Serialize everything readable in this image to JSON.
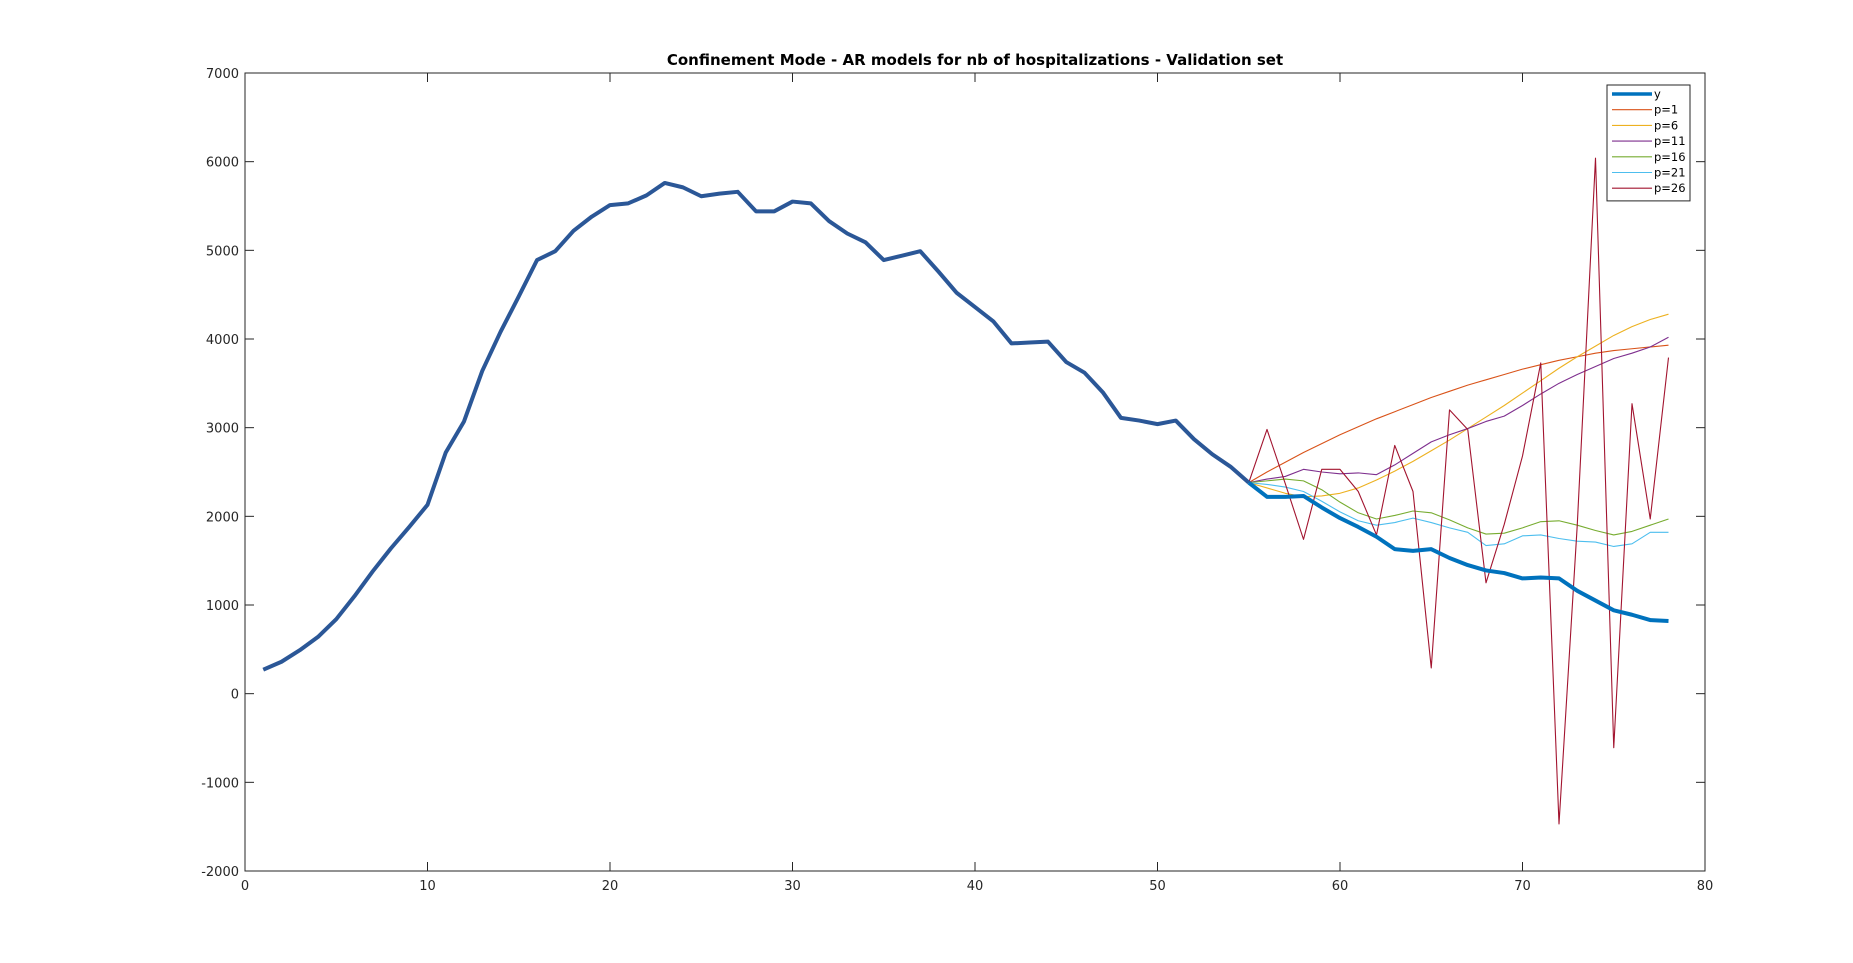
{
  "chart_data": {
    "type": "line",
    "title": "Confinement Mode - AR models for nb of hospitalizations - Validation set",
    "xlabel": "",
    "ylabel": "",
    "xlim": [
      0,
      80
    ],
    "ylim": [
      -2000,
      7000
    ],
    "xticks": [
      0,
      10,
      20,
      30,
      40,
      50,
      60,
      70,
      80
    ],
    "yticks": [
      -2000,
      -1000,
      0,
      1000,
      2000,
      3000,
      4000,
      5000,
      6000,
      7000
    ],
    "grid": false,
    "legend_position": "top-right",
    "history": {
      "color": "#2b5797",
      "x": [
        1,
        2,
        3,
        4,
        5,
        6,
        7,
        8,
        9,
        10,
        11,
        12,
        13,
        14,
        15,
        16,
        17,
        18,
        19,
        20,
        21,
        22,
        23,
        24,
        25,
        26,
        27,
        28,
        29,
        30,
        31,
        32,
        33,
        34,
        35,
        36,
        37,
        38,
        39,
        40,
        41,
        42,
        43,
        44,
        45,
        46,
        47,
        48,
        49,
        50,
        51,
        52,
        53,
        54,
        55
      ],
      "values": [
        270,
        360,
        490,
        640,
        840,
        1100,
        1380,
        1640,
        1880,
        2130,
        2720,
        3070,
        3640,
        4080,
        4480,
        4890,
        4990,
        5220,
        5380,
        5510,
        5530,
        5620,
        5760,
        5710,
        5610,
        5640,
        5660,
        5440,
        5440,
        5550,
        5530,
        5330,
        5190,
        5090,
        4890,
        4940,
        4990,
        4760,
        4520,
        4360,
        4200,
        3950,
        3960,
        3970,
        3740,
        3620,
        3400,
        3110,
        3080,
        3040,
        3080,
        2870,
        2700,
        2560,
        2380
      ]
    },
    "series": [
      {
        "name": "y",
        "color": "#0072bd",
        "width": 4,
        "x": [
          55,
          56,
          57,
          58,
          59,
          60,
          61,
          62,
          63,
          64,
          65,
          66,
          67,
          68,
          69,
          70,
          71,
          72,
          73,
          74,
          75,
          76,
          77,
          78
        ],
        "values": [
          2380,
          2220,
          2220,
          2230,
          2100,
          1980,
          1880,
          1770,
          1630,
          1610,
          1630,
          1530,
          1450,
          1390,
          1360,
          1300,
          1310,
          1300,
          1160,
          1050,
          940,
          890,
          830,
          820
        ]
      },
      {
        "name": "p=1",
        "color": "#d95319",
        "width": 1.1,
        "x": [
          55,
          56,
          57,
          58,
          59,
          60,
          61,
          62,
          63,
          64,
          65,
          66,
          67,
          68,
          69,
          70,
          71,
          72,
          73,
          74,
          75,
          76,
          77,
          78
        ],
        "values": [
          2380,
          2500,
          2610,
          2720,
          2820,
          2920,
          3010,
          3100,
          3180,
          3260,
          3340,
          3410,
          3480,
          3540,
          3600,
          3660,
          3710,
          3760,
          3800,
          3840,
          3870,
          3890,
          3910,
          3930
        ]
      },
      {
        "name": "p=6",
        "color": "#edb120",
        "width": 1.1,
        "x": [
          55,
          56,
          57,
          58,
          59,
          60,
          61,
          62,
          63,
          64,
          65,
          66,
          67,
          68,
          69,
          70,
          71,
          72,
          73,
          74,
          75,
          76,
          77,
          78
        ],
        "values": [
          2380,
          2320,
          2260,
          2220,
          2230,
          2260,
          2320,
          2410,
          2510,
          2620,
          2740,
          2860,
          2990,
          3120,
          3250,
          3390,
          3530,
          3670,
          3800,
          3920,
          4040,
          4140,
          4220,
          4280
        ]
      },
      {
        "name": "p=11",
        "color": "#7e2f8e",
        "width": 1.1,
        "x": [
          55,
          56,
          57,
          58,
          59,
          60,
          61,
          62,
          63,
          64,
          65,
          66,
          67,
          68,
          69,
          70,
          71,
          72,
          73,
          74,
          75,
          76,
          77,
          78
        ],
        "values": [
          2380,
          2420,
          2450,
          2530,
          2500,
          2480,
          2490,
          2470,
          2580,
          2710,
          2840,
          2920,
          2990,
          3070,
          3130,
          3250,
          3380,
          3500,
          3600,
          3690,
          3780,
          3840,
          3910,
          4020
        ]
      },
      {
        "name": "p=16",
        "color": "#77ac30",
        "width": 1.1,
        "x": [
          55,
          56,
          57,
          58,
          59,
          60,
          61,
          62,
          63,
          64,
          65,
          66,
          67,
          68,
          69,
          70,
          71,
          72,
          73,
          74,
          75,
          76,
          77,
          78
        ],
        "values": [
          2380,
          2400,
          2420,
          2400,
          2300,
          2160,
          2040,
          1970,
          2010,
          2060,
          2040,
          1960,
          1870,
          1800,
          1810,
          1870,
          1940,
          1950,
          1900,
          1840,
          1790,
          1830,
          1900,
          1970
        ]
      },
      {
        "name": "p=21",
        "color": "#4dbeee",
        "width": 1.1,
        "x": [
          55,
          56,
          57,
          58,
          59,
          60,
          61,
          62,
          63,
          64,
          65,
          66,
          67,
          68,
          69,
          70,
          71,
          72,
          73,
          74,
          75,
          76,
          77,
          78
        ],
        "values": [
          2380,
          2360,
          2330,
          2280,
          2170,
          2050,
          1950,
          1900,
          1930,
          1980,
          1930,
          1870,
          1820,
          1670,
          1690,
          1780,
          1790,
          1750,
          1720,
          1710,
          1660,
          1690,
          1820,
          1820
        ]
      },
      {
        "name": "p=26",
        "color": "#a2142f",
        "width": 1.1,
        "x": [
          55,
          56,
          57,
          58,
          59,
          60,
          61,
          62,
          63,
          64,
          65,
          66,
          67,
          68,
          69,
          70,
          71,
          72,
          73,
          74,
          75,
          76,
          77,
          78
        ],
        "values": [
          2380,
          2980,
          2370,
          1740,
          2530,
          2530,
          2280,
          1790,
          2800,
          2280,
          290,
          3200,
          2980,
          1250,
          1910,
          2680,
          3730,
          -1470,
          1900,
          6040,
          -610,
          3270,
          1970,
          3790
        ]
      }
    ]
  }
}
